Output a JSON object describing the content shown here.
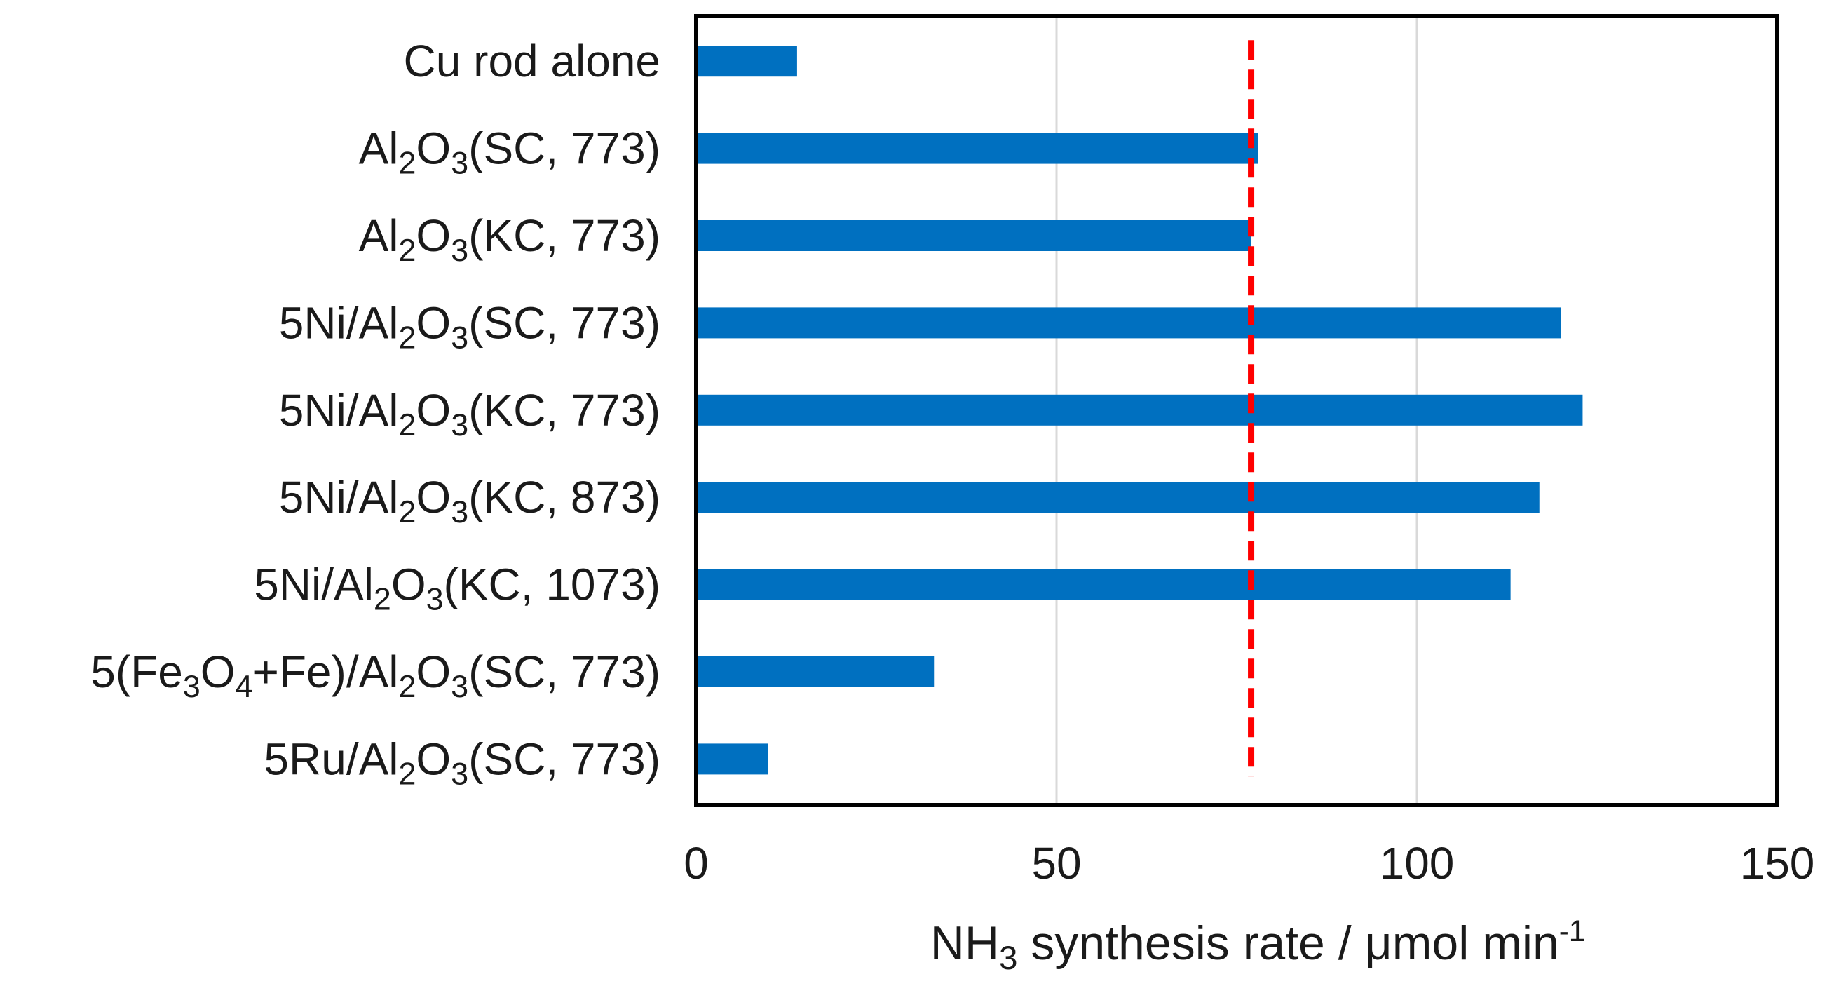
{
  "chart_data": {
    "type": "bar",
    "orientation": "horizontal",
    "title": "",
    "categories": [
      {
        "label": "Cu rod alone",
        "parts": [
          {
            "t": "Cu rod alone"
          }
        ]
      },
      {
        "label": "Al2O3(SC, 773)",
        "parts": [
          {
            "t": "Al"
          },
          {
            "t": "2",
            "sub": true
          },
          {
            "t": "O"
          },
          {
            "t": "3",
            "sub": true
          },
          {
            "t": "(SC, 773)"
          }
        ]
      },
      {
        "label": "Al2O3(KC, 773)",
        "parts": [
          {
            "t": "Al"
          },
          {
            "t": "2",
            "sub": true
          },
          {
            "t": "O"
          },
          {
            "t": "3",
            "sub": true
          },
          {
            "t": "(KC, 773)"
          }
        ]
      },
      {
        "label": "5Ni/Al2O3(SC, 773)",
        "parts": [
          {
            "t": "5Ni/Al"
          },
          {
            "t": "2",
            "sub": true
          },
          {
            "t": "O"
          },
          {
            "t": "3",
            "sub": true
          },
          {
            "t": "(SC, 773)"
          }
        ]
      },
      {
        "label": "5Ni/Al2O3(KC, 773)",
        "parts": [
          {
            "t": "5Ni/Al"
          },
          {
            "t": "2",
            "sub": true
          },
          {
            "t": "O"
          },
          {
            "t": "3",
            "sub": true
          },
          {
            "t": "(KC, 773)"
          }
        ]
      },
      {
        "label": "5Ni/Al2O3(KC, 873)",
        "parts": [
          {
            "t": "5Ni/Al"
          },
          {
            "t": "2",
            "sub": true
          },
          {
            "t": "O"
          },
          {
            "t": "3",
            "sub": true
          },
          {
            "t": "(KC, 873)"
          }
        ]
      },
      {
        "label": "5Ni/Al2O3(KC, 1073)",
        "parts": [
          {
            "t": "5Ni/Al"
          },
          {
            "t": "2",
            "sub": true
          },
          {
            "t": "O"
          },
          {
            "t": "3",
            "sub": true
          },
          {
            "t": "(KC, 1073)"
          }
        ]
      },
      {
        "label": "5(Fe3O4+Fe)/Al2O3(SC, 773)",
        "parts": [
          {
            "t": "5(Fe"
          },
          {
            "t": "3",
            "sub": true
          },
          {
            "t": "O"
          },
          {
            "t": "4",
            "sub": true
          },
          {
            "t": "+Fe)/Al"
          },
          {
            "t": "2",
            "sub": true
          },
          {
            "t": "O"
          },
          {
            "t": "3",
            "sub": true
          },
          {
            "t": "(SC, 773)"
          }
        ]
      },
      {
        "label": "5Ru/Al2O3(SC, 773)",
        "parts": [
          {
            "t": "5Ru/Al"
          },
          {
            "t": "2",
            "sub": true
          },
          {
            "t": "O"
          },
          {
            "t": "3",
            "sub": true
          },
          {
            "t": "(SC, 773)"
          }
        ]
      }
    ],
    "values": [
      14,
      78,
      77,
      120,
      123,
      117,
      113,
      33,
      10
    ],
    "xlabel": "NH3 synthesis rate / μmol min-1",
    "xlabel_parts": [
      {
        "t": "NH"
      },
      {
        "t": "3",
        "sub": true
      },
      {
        "t": " synthesis rate / μmol min"
      },
      {
        "t": "-1",
        "sup": true
      }
    ],
    "ylabel": "",
    "xlim": [
      0,
      150
    ],
    "xticks": [
      0,
      50,
      100,
      150
    ],
    "grid": "vertical",
    "reference_line": {
      "value": 77,
      "style": "dashed"
    },
    "legend": "none"
  },
  "colors": {
    "bar": "#0070c0",
    "reference_line": "#ff0000",
    "grid": "#d9d9d9",
    "frame": "#000000",
    "text": "#1a1a1a"
  }
}
